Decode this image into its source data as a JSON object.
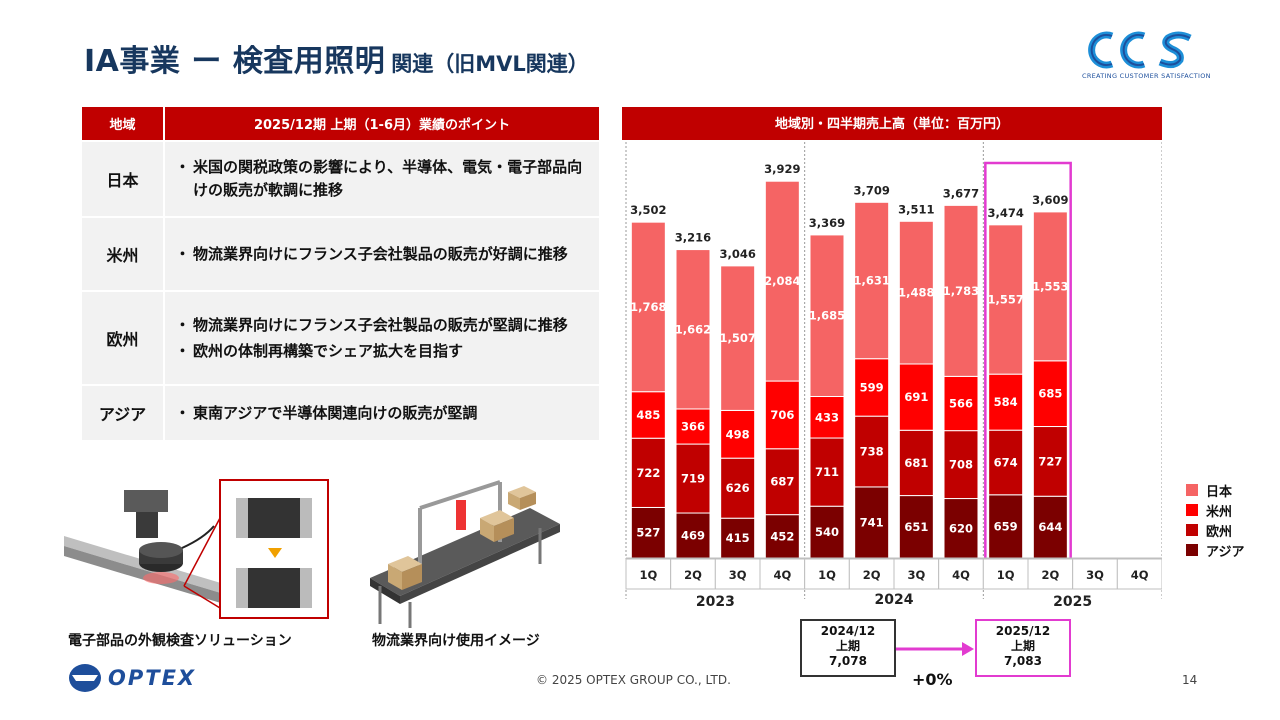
{
  "header": {
    "title_main": "IA事業 ー 検査用照明",
    "title_sub": "関連（旧MVL関連）",
    "logo_text": "CCS",
    "logo_tagline": "CREATING CUSTOMER SATISFACTION"
  },
  "points_table": {
    "col_region": "地域",
    "col_points": "2025/12期 上期（1-6月）業績のポイント",
    "rows": [
      {
        "region": "日本",
        "points": [
          "米国の関税政策の影響により、半導体、電気・電子部品向けの販売が軟調に推移"
        ]
      },
      {
        "region": "米州",
        "points": [
          "物流業界向けにフランス子会社製品の販売が好調に推移"
        ]
      },
      {
        "region": "欧州",
        "points": [
          "物流業界向けにフランス子会社製品の販売が堅調に推移",
          "欧州の体制再構築でシェア拡大を目指す"
        ]
      },
      {
        "region": "アジア",
        "points": [
          "東南アジアで半導体関連向けの販売が堅調"
        ]
      }
    ]
  },
  "images": {
    "caption_left": "電子部品の外観検査ソリューション",
    "caption_right": "物流業界向け使用イメージ"
  },
  "footer": {
    "brand": "OPTEX",
    "copyright": "© 2025 OPTEX GROUP CO., LTD.",
    "page": "14"
  },
  "colors": {
    "title": "#17375e",
    "header_red": "#c00000",
    "japan": "#f56464",
    "americas": "#ff0000",
    "europe": "#c00000",
    "asia": "#7b0000",
    "highlight": "#e23bd0"
  },
  "chart_data": {
    "type": "bar",
    "stacked": true,
    "title": "地域別・四半期売上高（単位：百万円）",
    "categories": [
      "1Q",
      "2Q",
      "3Q",
      "4Q",
      "1Q",
      "2Q",
      "3Q",
      "4Q",
      "1Q",
      "2Q",
      "3Q",
      "4Q"
    ],
    "years": [
      "2023",
      "2024",
      "2025"
    ],
    "series": [
      {
        "name": "アジア",
        "values": [
          527,
          469,
          415,
          452,
          540,
          741,
          651,
          620,
          659,
          644,
          null,
          null
        ]
      },
      {
        "name": "欧州",
        "values": [
          722,
          719,
          626,
          687,
          711,
          738,
          681,
          708,
          674,
          727,
          null,
          null
        ]
      },
      {
        "name": "米州",
        "values": [
          485,
          366,
          498,
          706,
          433,
          599,
          691,
          566,
          584,
          685,
          null,
          null
        ]
      },
      {
        "name": "日本",
        "values": [
          1768,
          1662,
          1507,
          2084,
          1685,
          1631,
          1488,
          1783,
          1557,
          1553,
          null,
          null
        ]
      }
    ],
    "totals": [
      "3,502",
      "3,216",
      "3,046",
      "3,929",
      "3,369",
      "3,709",
      "3,511",
      "3,677",
      "3,474",
      "3,609",
      "",
      ""
    ],
    "segment_labels": {
      "アジア": [
        "527",
        "469",
        "415",
        "452",
        "540",
        "741",
        "651",
        "620",
        "659",
        "644"
      ],
      "欧州": [
        "722",
        "719",
        "626",
        "687",
        "711",
        "738",
        "681",
        "708",
        "674",
        "727"
      ],
      "米州": [
        "485",
        "366",
        "498",
        "706",
        "433",
        "599",
        "691",
        "566",
        "584",
        "685"
      ],
      "日本": [
        "1,768",
        "1,662",
        "1,507",
        "2,084",
        "1,685",
        "1,631",
        "1,488",
        "1,783",
        "1,557",
        "1,553"
      ]
    },
    "legend": [
      "日本",
      "米州",
      "欧州",
      "アジア"
    ],
    "legend_position": "right",
    "ylim": [
      0,
      4500
    ],
    "highlighted_quarters": [
      "2025 1Q",
      "2025 2Q"
    ]
  },
  "comparison": {
    "prev_period": "2024/12",
    "prev_half": "上期",
    "prev_value": "7,078",
    "curr_period": "2025/12",
    "curr_half": "上期",
    "curr_value": "7,083",
    "change": "+0%"
  }
}
